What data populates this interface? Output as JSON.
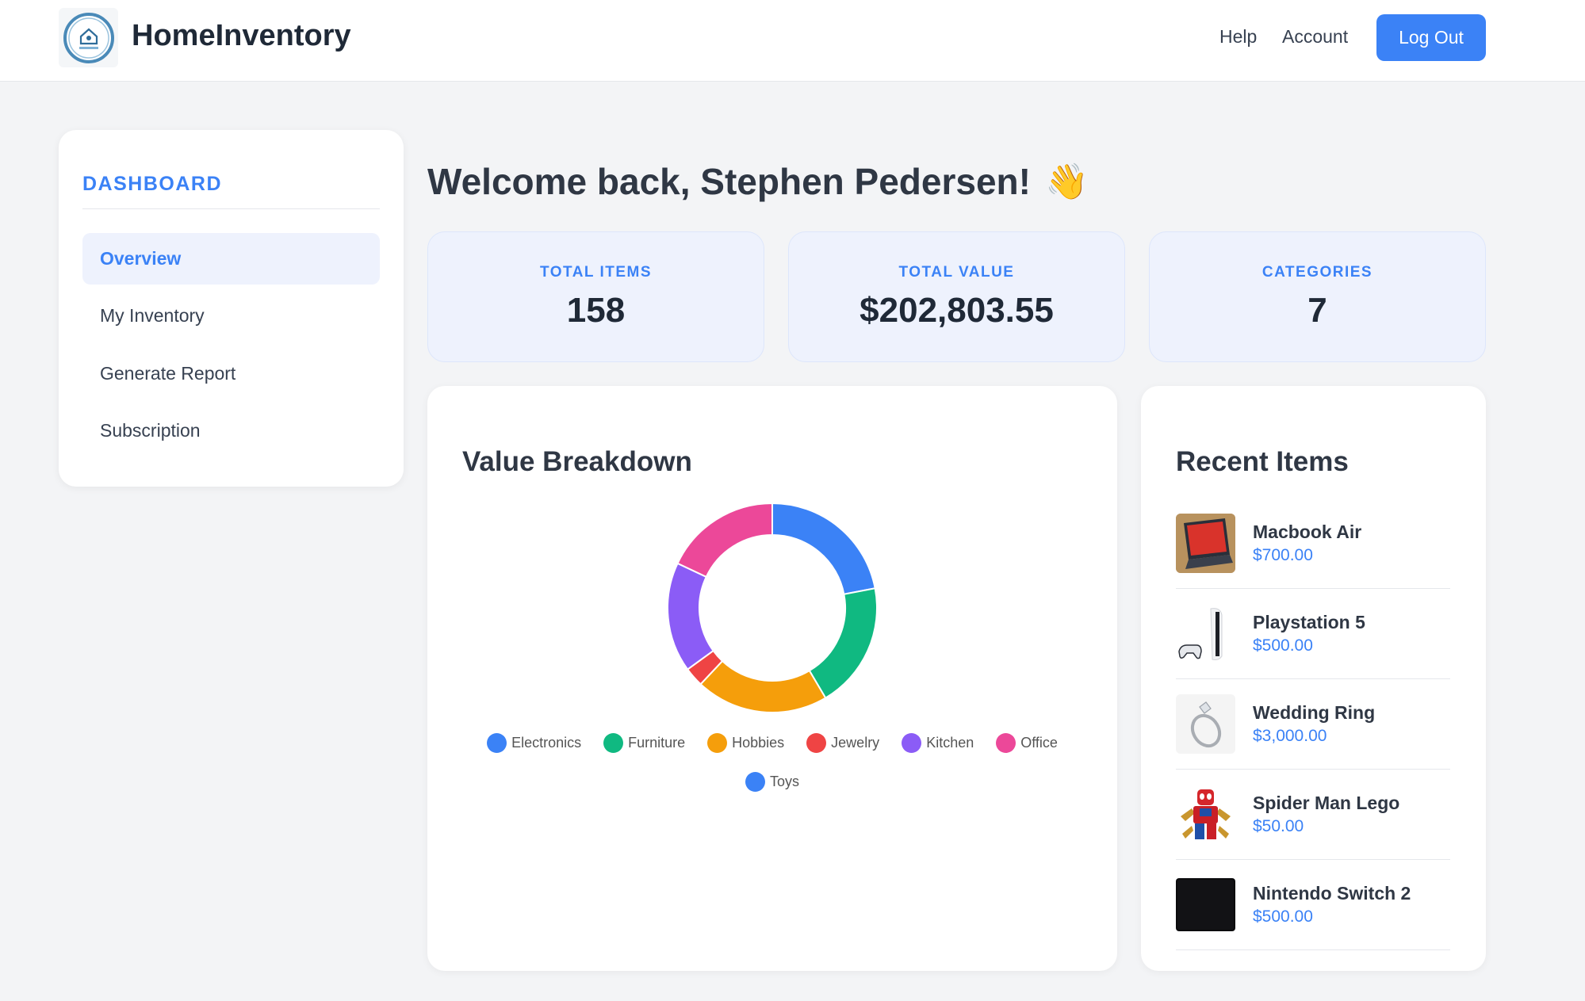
{
  "header": {
    "brand": "HomeInventory",
    "logo_text": "HomeInventory",
    "nav": [
      "Help",
      "Account"
    ],
    "logout_label": "Log Out"
  },
  "sidebar": {
    "title": "DASHBOARD",
    "items": [
      {
        "label": "Overview",
        "active": true
      },
      {
        "label": "My Inventory",
        "active": false
      },
      {
        "label": "Generate Report",
        "active": false
      },
      {
        "label": "Subscription",
        "active": false
      }
    ]
  },
  "main": {
    "welcome": "Welcome back, Stephen Pedersen!",
    "wave_emoji": "👋",
    "stats": [
      {
        "label": "TOTAL ITEMS",
        "value": "158"
      },
      {
        "label": "TOTAL VALUE",
        "value": "$202,803.55"
      },
      {
        "label": "CATEGORIES",
        "value": "7"
      }
    ]
  },
  "value_breakdown": {
    "title": "Value Breakdown"
  },
  "chart_data": {
    "type": "pie",
    "variant": "doughnut",
    "categories": [
      "Electronics",
      "Furniture",
      "Hobbies",
      "Jewelry",
      "Kitchen",
      "Office",
      "Toys"
    ],
    "values": [
      22,
      19.5,
      20.5,
      3,
      17,
      18,
      0
    ],
    "colors": [
      "#3b82f6",
      "#10b981",
      "#f59e0b",
      "#ef4444",
      "#8b5cf6",
      "#ec4899",
      "#3b82f6"
    ],
    "legend_position": "bottom"
  },
  "recent": {
    "title": "Recent Items",
    "items": [
      {
        "name": "Macbook Air",
        "price": "$700.00",
        "icon": "laptop-thumbnail"
      },
      {
        "name": "Playstation 5",
        "price": "$500.00",
        "icon": "console-thumbnail"
      },
      {
        "name": "Wedding Ring",
        "price": "$3,000.00",
        "icon": "ring-thumbnail"
      },
      {
        "name": "Spider Man Lego",
        "price": "$50.00",
        "icon": "lego-figure-thumbnail"
      },
      {
        "name": "Nintendo Switch 2",
        "price": "$500.00",
        "icon": "switch-thumbnail"
      }
    ]
  }
}
